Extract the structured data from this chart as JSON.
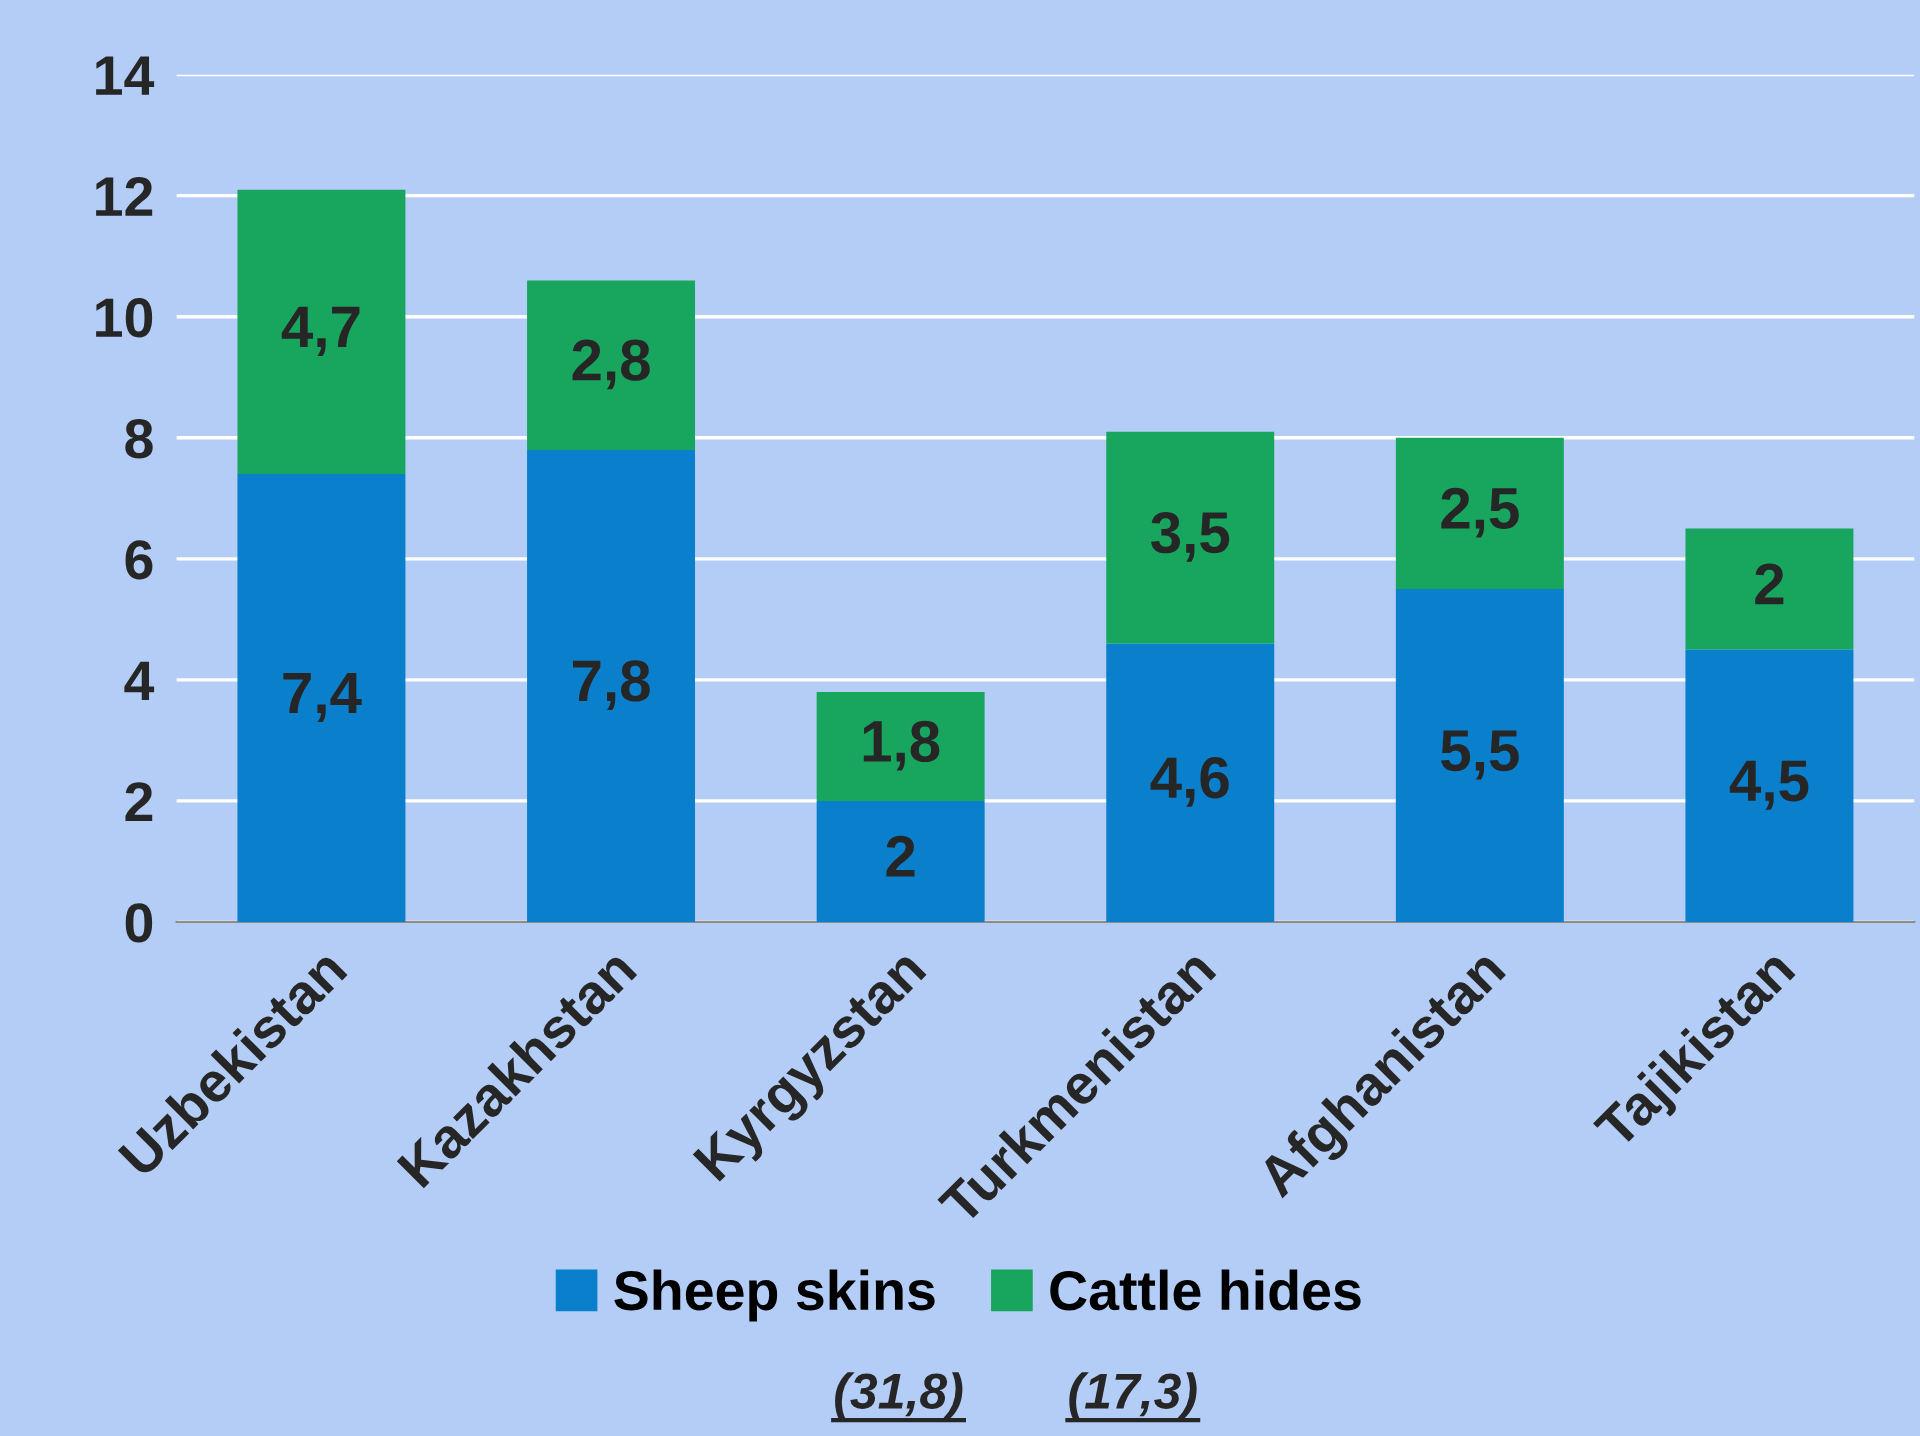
{
  "chart_data": {
    "type": "bar",
    "stacked": true,
    "categories": [
      "Uzbekistan",
      "Kazakhstan",
      "Kyrgyzstan",
      "Turkmenistan",
      "Afghanistan",
      "Tajikistan"
    ],
    "series": [
      {
        "name": "Sheep skins",
        "color": "#0a7fcc",
        "values": [
          7.4,
          7.8,
          2,
          4.6,
          5.5,
          4.5
        ],
        "value_labels": [
          "7,4",
          "7,8",
          "2",
          "4,6",
          "5,5",
          "4,5"
        ]
      },
      {
        "name": "Cattle hides",
        "color": "#18a65e",
        "values": [
          4.7,
          2.8,
          1.8,
          3.5,
          2.5,
          2
        ],
        "value_labels": [
          "4,7",
          "2,8",
          "1,8",
          "3,5",
          "2,5",
          "2"
        ]
      }
    ],
    "ylim": [
      0,
      14
    ],
    "yticks": [
      0,
      2,
      4,
      6,
      8,
      10,
      12,
      14
    ],
    "grid": "y",
    "legend": "bottom",
    "annotations": [
      "(31,8)",
      "(17,3)"
    ]
  }
}
